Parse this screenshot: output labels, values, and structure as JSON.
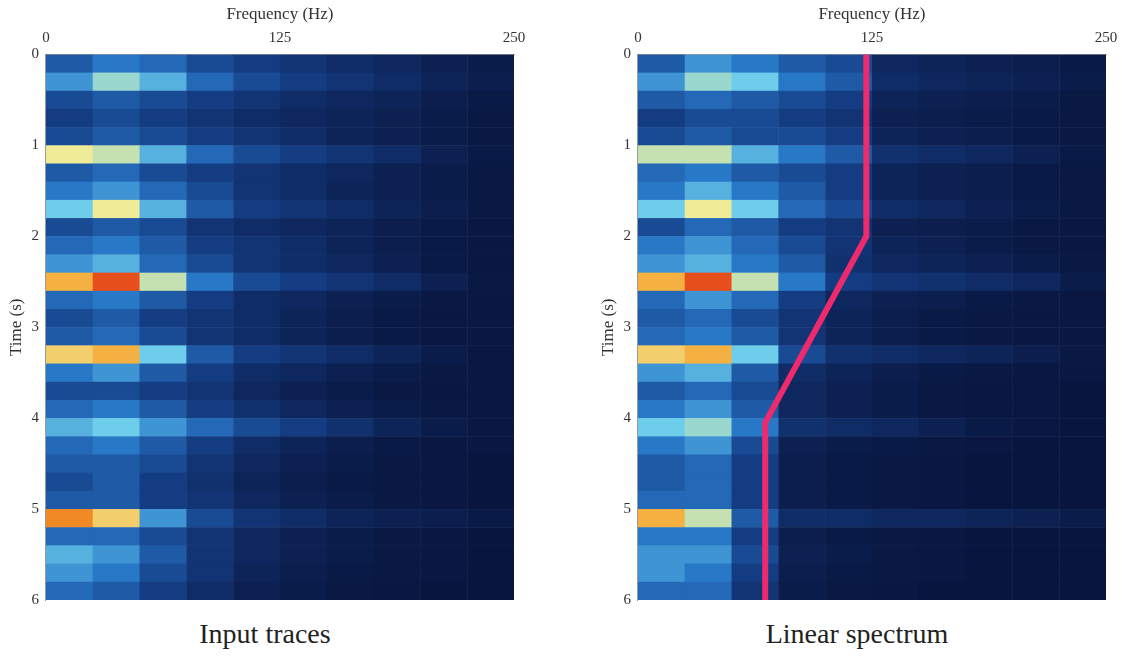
{
  "chart_data": [
    {
      "type": "heatmap",
      "title": "Input traces",
      "x_label": "Frequency (Hz)",
      "y_label": "Time (s)",
      "xlim": [
        0,
        250
      ],
      "ylim": [
        6,
        0
      ],
      "xticks": [
        0,
        125,
        250
      ],
      "yticks": [
        0,
        1,
        2,
        3,
        4,
        5,
        6
      ],
      "grid": false,
      "x_edges": [
        0,
        25,
        50,
        75,
        100,
        125,
        150,
        175,
        200,
        225,
        250
      ],
      "y_edges": [
        0,
        0.2,
        0.4,
        0.6,
        0.8,
        1,
        1.2,
        1.4,
        1.6,
        1.8,
        2,
        2.2,
        2.4,
        2.6,
        2.8,
        3,
        3.2,
        3.4,
        3.6,
        3.8,
        4,
        4.2,
        4.4,
        4.6,
        4.8,
        5,
        5.2,
        5.4,
        5.6,
        5.8,
        6
      ],
      "cells": [
        [
          0.35,
          0.45,
          0.4,
          0.3,
          0.25,
          0.2,
          0.15,
          0.12,
          0.08,
          0.05
        ],
        [
          0.5,
          0.65,
          0.55,
          0.4,
          0.3,
          0.25,
          0.2,
          0.15,
          0.1,
          0.06
        ],
        [
          0.3,
          0.35,
          0.3,
          0.25,
          0.2,
          0.15,
          0.12,
          0.1,
          0.06,
          0.04
        ],
        [
          0.25,
          0.3,
          0.25,
          0.2,
          0.15,
          0.12,
          0.1,
          0.08,
          0.05,
          0.03
        ],
        [
          0.3,
          0.35,
          0.3,
          0.25,
          0.2,
          0.15,
          0.1,
          0.08,
          0.05,
          0.03
        ],
        [
          0.75,
          0.7,
          0.55,
          0.4,
          0.3,
          0.25,
          0.2,
          0.15,
          0.08,
          0.04
        ],
        [
          0.35,
          0.4,
          0.3,
          0.25,
          0.2,
          0.15,
          0.12,
          0.08,
          0.05,
          0.03
        ],
        [
          0.45,
          0.5,
          0.4,
          0.3,
          0.2,
          0.15,
          0.1,
          0.08,
          0.05,
          0.03
        ],
        [
          0.6,
          0.75,
          0.55,
          0.35,
          0.25,
          0.2,
          0.15,
          0.1,
          0.06,
          0.03
        ],
        [
          0.3,
          0.35,
          0.3,
          0.2,
          0.15,
          0.12,
          0.1,
          0.06,
          0.04,
          0.02
        ],
        [
          0.4,
          0.45,
          0.35,
          0.25,
          0.2,
          0.15,
          0.1,
          0.06,
          0.04,
          0.02
        ],
        [
          0.5,
          0.55,
          0.4,
          0.3,
          0.2,
          0.15,
          0.12,
          0.08,
          0.04,
          0.02
        ],
        [
          0.85,
          0.95,
          0.7,
          0.45,
          0.3,
          0.25,
          0.2,
          0.15,
          0.08,
          0.03
        ],
        [
          0.4,
          0.45,
          0.35,
          0.25,
          0.15,
          0.12,
          0.08,
          0.05,
          0.03,
          0.02
        ],
        [
          0.3,
          0.35,
          0.25,
          0.2,
          0.15,
          0.1,
          0.06,
          0.04,
          0.02,
          0.02
        ],
        [
          0.35,
          0.4,
          0.3,
          0.2,
          0.15,
          0.1,
          0.06,
          0.04,
          0.02,
          0.02
        ],
        [
          0.8,
          0.85,
          0.6,
          0.35,
          0.25,
          0.2,
          0.15,
          0.1,
          0.05,
          0.02
        ],
        [
          0.45,
          0.5,
          0.35,
          0.25,
          0.15,
          0.12,
          0.08,
          0.05,
          0.03,
          0.02
        ],
        [
          0.3,
          0.3,
          0.25,
          0.2,
          0.12,
          0.08,
          0.05,
          0.03,
          0.02,
          0.02
        ],
        [
          0.4,
          0.45,
          0.35,
          0.25,
          0.18,
          0.12,
          0.08,
          0.05,
          0.03,
          0.02
        ],
        [
          0.55,
          0.6,
          0.5,
          0.4,
          0.3,
          0.25,
          0.18,
          0.1,
          0.05,
          0.02
        ],
        [
          0.4,
          0.45,
          0.35,
          0.25,
          0.15,
          0.1,
          0.06,
          0.04,
          0.02,
          0.02
        ],
        [
          0.35,
          0.35,
          0.3,
          0.2,
          0.12,
          0.08,
          0.05,
          0.03,
          0.02,
          0.01
        ],
        [
          0.3,
          0.35,
          0.25,
          0.18,
          0.1,
          0.06,
          0.04,
          0.03,
          0.02,
          0.01
        ],
        [
          0.35,
          0.35,
          0.25,
          0.2,
          0.12,
          0.08,
          0.05,
          0.03,
          0.02,
          0.01
        ],
        [
          0.9,
          0.8,
          0.5,
          0.3,
          0.2,
          0.15,
          0.1,
          0.08,
          0.06,
          0.04
        ],
        [
          0.4,
          0.4,
          0.3,
          0.2,
          0.12,
          0.08,
          0.05,
          0.03,
          0.02,
          0.01
        ],
        [
          0.55,
          0.5,
          0.35,
          0.2,
          0.12,
          0.08,
          0.05,
          0.03,
          0.02,
          0.01
        ],
        [
          0.5,
          0.45,
          0.3,
          0.2,
          0.1,
          0.06,
          0.04,
          0.03,
          0.02,
          0.01
        ],
        [
          0.4,
          0.35,
          0.25,
          0.15,
          0.08,
          0.05,
          0.03,
          0.02,
          0.01,
          0.01
        ]
      ]
    },
    {
      "type": "heatmap",
      "title": "Linear spectrum",
      "x_label": "Frequency (Hz)",
      "y_label": "Time (s)",
      "xlim": [
        0,
        250
      ],
      "ylim": [
        6,
        0
      ],
      "xticks": [
        0,
        125,
        250
      ],
      "yticks": [
        0,
        1,
        2,
        3,
        4,
        5,
        6
      ],
      "grid": false,
      "x_edges": [
        0,
        25,
        50,
        75,
        100,
        125,
        150,
        175,
        200,
        225,
        250
      ],
      "y_edges": [
        0,
        0.2,
        0.4,
        0.6,
        0.8,
        1,
        1.2,
        1.4,
        1.6,
        1.8,
        2,
        2.2,
        2.4,
        2.6,
        2.8,
        3,
        3.2,
        3.4,
        3.6,
        3.8,
        4,
        4.2,
        4.4,
        4.6,
        4.8,
        5,
        5.2,
        5.4,
        5.6,
        5.8,
        6
      ],
      "cells": [
        [
          0.35,
          0.5,
          0.45,
          0.35,
          0.3,
          0.12,
          0.1,
          0.08,
          0.06,
          0.04
        ],
        [
          0.5,
          0.65,
          0.6,
          0.45,
          0.35,
          0.15,
          0.12,
          0.1,
          0.08,
          0.05
        ],
        [
          0.35,
          0.4,
          0.35,
          0.3,
          0.25,
          0.1,
          0.08,
          0.06,
          0.05,
          0.03
        ],
        [
          0.25,
          0.3,
          0.3,
          0.25,
          0.2,
          0.08,
          0.06,
          0.05,
          0.04,
          0.03
        ],
        [
          0.3,
          0.35,
          0.3,
          0.3,
          0.25,
          0.1,
          0.08,
          0.06,
          0.04,
          0.03
        ],
        [
          0.7,
          0.7,
          0.55,
          0.45,
          0.35,
          0.18,
          0.15,
          0.12,
          0.08,
          0.04
        ],
        [
          0.4,
          0.45,
          0.35,
          0.3,
          0.25,
          0.1,
          0.08,
          0.06,
          0.04,
          0.03
        ],
        [
          0.45,
          0.55,
          0.45,
          0.35,
          0.25,
          0.1,
          0.08,
          0.06,
          0.04,
          0.03
        ],
        [
          0.6,
          0.75,
          0.6,
          0.4,
          0.3,
          0.15,
          0.12,
          0.08,
          0.05,
          0.03
        ],
        [
          0.3,
          0.4,
          0.35,
          0.25,
          0.2,
          0.08,
          0.06,
          0.05,
          0.03,
          0.02
        ],
        [
          0.45,
          0.5,
          0.4,
          0.3,
          0.2,
          0.1,
          0.08,
          0.05,
          0.03,
          0.02
        ],
        [
          0.5,
          0.55,
          0.45,
          0.35,
          0.18,
          0.12,
          0.1,
          0.08,
          0.05,
          0.03
        ],
        [
          0.85,
          0.95,
          0.7,
          0.45,
          0.25,
          0.2,
          0.18,
          0.15,
          0.12,
          0.05
        ],
        [
          0.4,
          0.5,
          0.4,
          0.25,
          0.12,
          0.08,
          0.06,
          0.04,
          0.03,
          0.02
        ],
        [
          0.35,
          0.4,
          0.3,
          0.2,
          0.1,
          0.06,
          0.04,
          0.03,
          0.02,
          0.02
        ],
        [
          0.4,
          0.45,
          0.35,
          0.2,
          0.1,
          0.06,
          0.04,
          0.03,
          0.02,
          0.02
        ],
        [
          0.8,
          0.85,
          0.6,
          0.3,
          0.18,
          0.15,
          0.12,
          0.1,
          0.06,
          0.03
        ],
        [
          0.5,
          0.55,
          0.35,
          0.15,
          0.1,
          0.06,
          0.04,
          0.03,
          0.02,
          0.02
        ],
        [
          0.35,
          0.4,
          0.3,
          0.12,
          0.08,
          0.05,
          0.03,
          0.02,
          0.02,
          0.01
        ],
        [
          0.45,
          0.5,
          0.35,
          0.12,
          0.08,
          0.05,
          0.03,
          0.02,
          0.02,
          0.01
        ],
        [
          0.6,
          0.65,
          0.45,
          0.18,
          0.15,
          0.12,
          0.08,
          0.04,
          0.02,
          0.01
        ],
        [
          0.45,
          0.5,
          0.3,
          0.08,
          0.05,
          0.04,
          0.03,
          0.02,
          0.01,
          0.01
        ],
        [
          0.35,
          0.4,
          0.25,
          0.06,
          0.04,
          0.03,
          0.02,
          0.01,
          0.01,
          0.01
        ],
        [
          0.35,
          0.4,
          0.25,
          0.06,
          0.04,
          0.03,
          0.02,
          0.01,
          0.01,
          0.01
        ],
        [
          0.4,
          0.4,
          0.25,
          0.06,
          0.04,
          0.03,
          0.02,
          0.01,
          0.01,
          0.01
        ],
        [
          0.85,
          0.7,
          0.35,
          0.15,
          0.15,
          0.12,
          0.12,
          0.1,
          0.08,
          0.05
        ],
        [
          0.45,
          0.45,
          0.25,
          0.06,
          0.04,
          0.03,
          0.02,
          0.01,
          0.01,
          0.01
        ],
        [
          0.5,
          0.5,
          0.3,
          0.08,
          0.05,
          0.03,
          0.02,
          0.01,
          0.01,
          0.01
        ],
        [
          0.5,
          0.45,
          0.25,
          0.06,
          0.04,
          0.03,
          0.02,
          0.01,
          0.01,
          0.01
        ],
        [
          0.4,
          0.4,
          0.2,
          0.05,
          0.03,
          0.02,
          0.01,
          0.01,
          0.01,
          0.01
        ]
      ],
      "series": [
        {
          "type": "line",
          "color": "#ee2a6e",
          "x": [
            122,
            122,
            68,
            68
          ],
          "values": [
            0,
            2,
            4.05,
            6
          ]
        }
      ]
    }
  ]
}
